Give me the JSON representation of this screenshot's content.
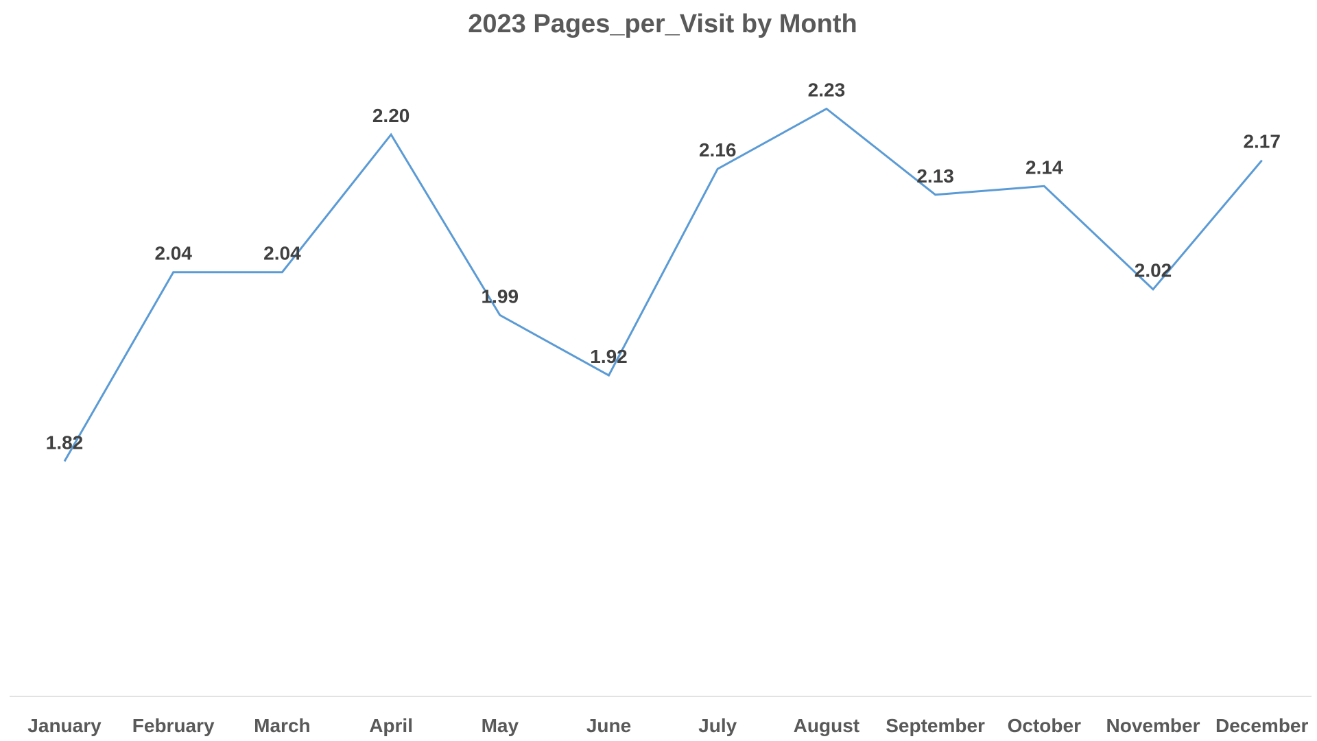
{
  "chart_data": {
    "type": "line",
    "title": "2023 Pages_per_Visit by Month",
    "xlabel": "",
    "ylabel": "",
    "categories": [
      "January",
      "February",
      "March",
      "April",
      "May",
      "June",
      "July",
      "August",
      "September",
      "October",
      "November",
      "December"
    ],
    "series": [
      {
        "name": "Pages_per_Visit",
        "values": [
          1.82,
          2.04,
          2.04,
          2.2,
          1.99,
          1.92,
          2.16,
          2.23,
          2.13,
          2.14,
          2.02,
          2.17
        ],
        "labels": [
          "1.82",
          "2.04",
          "2.04",
          "2.20",
          "1.99",
          "1.92",
          "2.16",
          "2.23",
          "2.13",
          "2.14",
          "2.02",
          "2.17"
        ],
        "color": "#5b9bd5"
      }
    ],
    "ylim": [
      1.7,
      2.3
    ],
    "grid": false,
    "legend": "none"
  }
}
